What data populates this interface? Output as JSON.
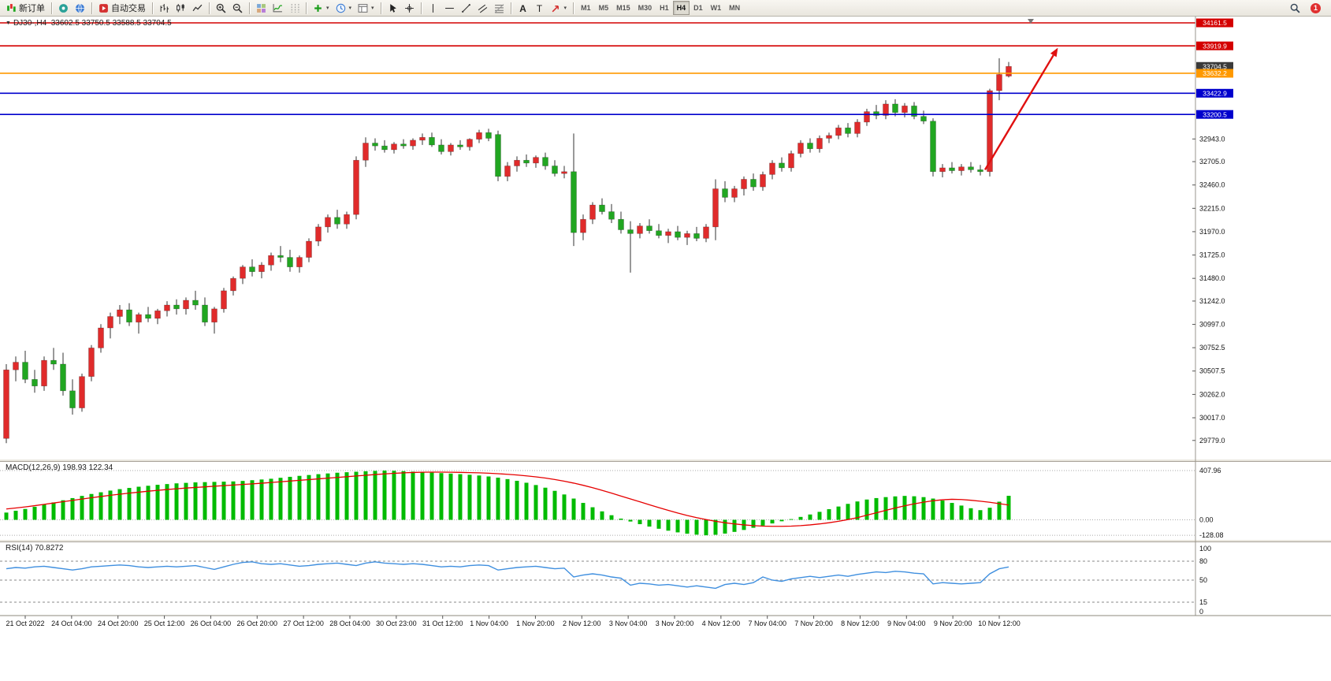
{
  "window": {
    "bg": "#ffffff"
  },
  "toolbar": {
    "groups": [
      {
        "buttons": [
          {
            "name": "new-order",
            "icon": "new-order-icon",
            "label": "新订单"
          }
        ]
      },
      {
        "buttons": [
          {
            "name": "charts-community",
            "icon": "chat-icon"
          },
          {
            "name": "metaquotes",
            "icon": "globe-icon"
          }
        ]
      },
      {
        "buttons": [
          {
            "name": "autotrade",
            "icon": "autotrade-icon",
            "label": "自动交易"
          }
        ]
      },
      {
        "buttons": [
          {
            "name": "chart-bars",
            "icon": "bars-icon"
          },
          {
            "name": "chart-candles",
            "icon": "candles-icon"
          },
          {
            "name": "chart-line",
            "icon": "line-icon"
          }
        ]
      },
      {
        "buttons": [
          {
            "name": "zoom-in",
            "icon": "zoom-in-icon"
          },
          {
            "name": "zoom-out",
            "icon": "zoom-out-icon"
          }
        ]
      },
      {
        "buttons": [
          {
            "name": "tile-windows",
            "icon": "tile-icon"
          },
          {
            "name": "indicators",
            "icon": "indicators-icon"
          },
          {
            "name": "period-separators",
            "icon": "grid-icon"
          }
        ]
      },
      {
        "buttons": [
          {
            "name": "add-indicator",
            "icon": "plus-icon",
            "dropdown": true
          },
          {
            "name": "periods",
            "icon": "clock-icon",
            "dropdown": true
          },
          {
            "name": "templates",
            "icon": "template-icon",
            "dropdown": true
          }
        ]
      },
      {
        "buttons": [
          {
            "name": "cursor",
            "icon": "cursor-icon"
          },
          {
            "name": "crosshair",
            "icon": "crosshair-icon"
          }
        ]
      },
      {
        "buttons": [
          {
            "name": "vertical-line-tool",
            "icon": "vline-icon"
          },
          {
            "name": "horizontal-line-tool",
            "icon": "hline-icon"
          },
          {
            "name": "trendline-tool",
            "icon": "trendline-icon"
          },
          {
            "name": "channel-tool",
            "icon": "channel-icon"
          },
          {
            "name": "fibonacci-tool",
            "icon": "fibo-icon"
          }
        ]
      },
      {
        "buttons": [
          {
            "name": "text-tool",
            "icon": "text-a-icon"
          },
          {
            "name": "label-tool",
            "icon": "text-t-icon"
          },
          {
            "name": "arrows-tool",
            "icon": "arrow-tool-icon",
            "dropdown": true
          }
        ]
      },
      {
        "buttons": [
          {
            "name": "tf-m1",
            "label": "M1",
            "tf": true
          },
          {
            "name": "tf-m5",
            "label": "M5",
            "tf": true
          },
          {
            "name": "tf-m15",
            "label": "M15",
            "tf": true
          },
          {
            "name": "tf-m30",
            "label": "M30",
            "tf": true
          },
          {
            "name": "tf-h1",
            "label": "H1",
            "tf": true
          },
          {
            "name": "tf-h4",
            "label": "H4",
            "tf": true,
            "active": true
          },
          {
            "name": "tf-d1",
            "label": "D1",
            "tf": true
          },
          {
            "name": "tf-w1",
            "label": "W1",
            "tf": true
          },
          {
            "name": "tf-mn",
            "label": "MN",
            "tf": true
          }
        ]
      }
    ],
    "right": [
      {
        "name": "search",
        "icon": "search-icon"
      },
      {
        "name": "notifications",
        "icon": "badge-icon",
        "badge": "1"
      }
    ]
  },
  "chart": {
    "collapse_glyph": "▼",
    "header": "DJ30-,H4  33602.5 33750.5 33588.5 33704.5",
    "macd_header": "MACD(12,26,9) 198.93 122.34",
    "rsi_header": "RSI(14) 70.8272"
  },
  "chart_data": {
    "type": "candlestick+indicators",
    "symbol": "DJ30-",
    "period": "H4",
    "ohlc_display": {
      "open": "33602.5",
      "high": "33750.5",
      "low": "33588.5",
      "close": "33704.5"
    },
    "colors": {
      "up": "#e02b2b",
      "down": "#21a621",
      "wick": "#333333",
      "macd_hist": "#00bb00",
      "macd_signal": "#e60000",
      "rsi_line": "#3f8fdf",
      "hline_red": "#d40000",
      "hline_orange": "#ff9900",
      "hline_blue": "#0000cd",
      "arrow": "#e01010",
      "current_tag": "#3a3a3a"
    },
    "candles": [
      [
        29800,
        30580,
        29750,
        30520
      ],
      [
        30520,
        30660,
        30400,
        30600
      ],
      [
        30600,
        30720,
        30380,
        30420
      ],
      [
        30420,
        30520,
        30280,
        30350
      ],
      [
        30350,
        30660,
        30300,
        30620
      ],
      [
        30620,
        30750,
        30520,
        30580
      ],
      [
        30580,
        30700,
        30250,
        30300
      ],
      [
        30300,
        30420,
        30050,
        30120
      ],
      [
        30120,
        30480,
        30080,
        30450
      ],
      [
        30450,
        30780,
        30400,
        30750
      ],
      [
        30750,
        31000,
        30700,
        30960
      ],
      [
        30960,
        31120,
        30850,
        31080
      ],
      [
        31080,
        31200,
        31000,
        31150
      ],
      [
        31150,
        31220,
        30980,
        31020
      ],
      [
        31020,
        31120,
        30900,
        31100
      ],
      [
        31100,
        31180,
        31020,
        31060
      ],
      [
        31060,
        31160,
        31000,
        31140
      ],
      [
        31140,
        31240,
        31080,
        31200
      ],
      [
        31200,
        31260,
        31100,
        31160
      ],
      [
        31160,
        31280,
        31100,
        31250
      ],
      [
        31250,
        31350,
        31150,
        31200
      ],
      [
        31200,
        31280,
        30980,
        31020
      ],
      [
        31020,
        31180,
        30900,
        31160
      ],
      [
        31160,
        31380,
        31120,
        31350
      ],
      [
        31350,
        31500,
        31300,
        31480
      ],
      [
        31480,
        31620,
        31420,
        31600
      ],
      [
        31600,
        31680,
        31500,
        31550
      ],
      [
        31550,
        31650,
        31480,
        31620
      ],
      [
        31620,
        31750,
        31560,
        31720
      ],
      [
        31720,
        31820,
        31650,
        31700
      ],
      [
        31700,
        31780,
        31550,
        31600
      ],
      [
        31600,
        31720,
        31540,
        31700
      ],
      [
        31700,
        31900,
        31650,
        31870
      ],
      [
        31870,
        32050,
        31820,
        32020
      ],
      [
        32020,
        32150,
        31960,
        32120
      ],
      [
        32120,
        32200,
        32000,
        32050
      ],
      [
        32050,
        32180,
        32000,
        32150
      ],
      [
        32150,
        32760,
        32100,
        32720
      ],
      [
        32720,
        32960,
        32650,
        32900
      ],
      [
        32900,
        32950,
        32820,
        32870
      ],
      [
        32870,
        32930,
        32800,
        32830
      ],
      [
        32830,
        32910,
        32790,
        32890
      ],
      [
        32890,
        32940,
        32840,
        32870
      ],
      [
        32870,
        32950,
        32830,
        32930
      ],
      [
        32930,
        33000,
        32880,
        32960
      ],
      [
        32960,
        33010,
        32860,
        32880
      ],
      [
        32880,
        32940,
        32780,
        32810
      ],
      [
        32810,
        32900,
        32770,
        32880
      ],
      [
        32880,
        32930,
        32830,
        32860
      ],
      [
        32860,
        32950,
        32820,
        32940
      ],
      [
        32940,
        33040,
        32900,
        33010
      ],
      [
        33010,
        33050,
        32920,
        32950
      ],
      [
        32990,
        33030,
        32500,
        32550
      ],
      [
        32550,
        32700,
        32500,
        32660
      ],
      [
        32660,
        32760,
        32600,
        32720
      ],
      [
        32720,
        32780,
        32650,
        32690
      ],
      [
        32690,
        32770,
        32640,
        32750
      ],
      [
        32750,
        32800,
        32620,
        32660
      ],
      [
        32660,
        32720,
        32550,
        32580
      ],
      [
        32580,
        32660,
        32530,
        32600
      ],
      [
        32600,
        33000,
        31820,
        31960
      ],
      [
        31960,
        32150,
        31880,
        32100
      ],
      [
        32100,
        32280,
        32050,
        32250
      ],
      [
        32250,
        32320,
        32150,
        32180
      ],
      [
        32180,
        32260,
        32060,
        32100
      ],
      [
        32100,
        32180,
        31950,
        31990
      ],
      [
        31990,
        32080,
        31540,
        31950
      ],
      [
        31950,
        32060,
        31900,
        32030
      ],
      [
        32030,
        32100,
        31950,
        31980
      ],
      [
        31980,
        32050,
        31900,
        31930
      ],
      [
        31930,
        32000,
        31850,
        31970
      ],
      [
        31970,
        32030,
        31880,
        31910
      ],
      [
        31910,
        31980,
        31830,
        31950
      ],
      [
        31950,
        32020,
        31870,
        31900
      ],
      [
        31900,
        32050,
        31860,
        32020
      ],
      [
        32020,
        32520,
        31880,
        32420
      ],
      [
        32420,
        32500,
        32280,
        32330
      ],
      [
        32330,
        32450,
        32280,
        32420
      ],
      [
        32420,
        32550,
        32350,
        32520
      ],
      [
        32520,
        32580,
        32400,
        32440
      ],
      [
        32440,
        32600,
        32400,
        32570
      ],
      [
        32570,
        32720,
        32520,
        32690
      ],
      [
        32690,
        32750,
        32600,
        32640
      ],
      [
        32640,
        32820,
        32600,
        32790
      ],
      [
        32790,
        32930,
        32750,
        32900
      ],
      [
        32900,
        32950,
        32800,
        32840
      ],
      [
        32840,
        32980,
        32800,
        32950
      ],
      [
        32950,
        33010,
        32900,
        32980
      ],
      [
        32980,
        33090,
        32940,
        33060
      ],
      [
        33060,
        33110,
        32960,
        33000
      ],
      [
        33000,
        33150,
        32960,
        33120
      ],
      [
        33120,
        33260,
        33080,
        33230
      ],
      [
        33230,
        33300,
        33150,
        33190
      ],
      [
        33190,
        33350,
        33150,
        33310
      ],
      [
        33310,
        33360,
        33180,
        33220
      ],
      [
        33220,
        33320,
        33170,
        33290
      ],
      [
        33290,
        33330,
        33150,
        33180
      ],
      [
        33180,
        33240,
        33100,
        33130
      ],
      [
        33130,
        33160,
        32550,
        32600
      ],
      [
        32600,
        32680,
        32540,
        32640
      ],
      [
        32640,
        32700,
        32580,
        32610
      ],
      [
        32610,
        32680,
        32560,
        32650
      ],
      [
        32650,
        32700,
        32590,
        32620
      ],
      [
        32620,
        32670,
        32560,
        32600
      ],
      [
        32600,
        33470,
        32550,
        33450
      ],
      [
        33450,
        33790,
        33350,
        33620
      ],
      [
        33602.5,
        33750.5,
        33588.5,
        33704.5
      ]
    ],
    "hlines": [
      {
        "price": 34161.5,
        "color": "#d40000",
        "width": 1.4
      },
      {
        "price": 33919.9,
        "color": "#d40000",
        "width": 1.6
      },
      {
        "price": 33632.2,
        "color": "#ff9900",
        "width": 1.6
      },
      {
        "price": 33422.9,
        "color": "#0000cd",
        "width": 1.6
      },
      {
        "price": 33200.5,
        "color": "#0000cd",
        "width": 1.6
      }
    ],
    "price_axis": {
      "tag_labels": [
        {
          "text": "34161.5",
          "bg": "#d40000"
        },
        {
          "text": "33919.9",
          "bg": "#d40000"
        },
        {
          "text": "33704.5",
          "bg": "#3a3a3a",
          "kind": "current"
        },
        {
          "text": "33632.2",
          "bg": "#ff9900"
        },
        {
          "text": "33422.9",
          "bg": "#0000cd"
        },
        {
          "text": "33200.5",
          "bg": "#0000cd"
        }
      ],
      "plain_ticks": [
        "32943.0",
        "32705.0",
        "32460.0",
        "32215.0",
        "31970.0",
        "31725.0",
        "31480.0",
        "31242.0",
        "30997.0",
        "30752.5",
        "30507.5",
        "30262.0",
        "30017.0",
        "29779.0"
      ]
    },
    "trend_arrow": {
      "x1_bar": 103.5,
      "price1": 32620,
      "x2_bar": 111.2,
      "price2": 33900,
      "color": "#e01010"
    },
    "macd": {
      "label": "MACD(12,26,9)",
      "value_main": 198.93,
      "value_signal": 122.34,
      "scale_labels": [
        "407.96",
        "0.00",
        "-128.08"
      ],
      "hist": [
        60,
        75,
        90,
        108,
        126,
        144,
        162,
        180,
        198,
        214,
        228,
        242,
        254,
        264,
        274,
        282,
        290,
        296,
        302,
        306,
        310,
        312,
        314,
        316,
        318,
        322,
        328,
        334,
        340,
        348,
        356,
        364,
        371,
        378,
        384,
        390,
        394,
        398,
        402,
        405,
        407.96,
        406,
        403,
        399,
        395,
        391,
        387,
        383,
        378,
        373,
        367,
        359,
        349,
        337,
        323,
        307,
        288,
        266,
        240,
        210,
        176,
        140,
        104,
        70,
        38,
        10,
        -14,
        -36,
        -56,
        -74,
        -90,
        -104,
        -115,
        -123,
        -128.08,
        -124,
        -114,
        -100,
        -84,
        -66,
        -48,
        -30,
        -12,
        6,
        24,
        44,
        66,
        88,
        110,
        132,
        152,
        168,
        180,
        188,
        194,
        198,
        195,
        188,
        176,
        160,
        140,
        118,
        96,
        80,
        100,
        150,
        198.93
      ],
      "signal": [
        90,
        98,
        107,
        117,
        128,
        139,
        150,
        161,
        172,
        183,
        193,
        203,
        212,
        221,
        229,
        237,
        244,
        251,
        257,
        263,
        268,
        273,
        278,
        283,
        288,
        293,
        298,
        303,
        309,
        315,
        321,
        327,
        333,
        339,
        345,
        351,
        357,
        363,
        369,
        375,
        380,
        385,
        389,
        392,
        394,
        395,
        395,
        394,
        393,
        391,
        389,
        386,
        382,
        377,
        371,
        364,
        356,
        346,
        334,
        320,
        304,
        286,
        266,
        244,
        221,
        197,
        173,
        149,
        125,
        101,
        78,
        56,
        36,
        18,
        2,
        -12,
        -24,
        -34,
        -42,
        -48,
        -52,
        -54,
        -54,
        -52,
        -48,
        -42,
        -34,
        -24,
        -12,
        2,
        18,
        38,
        58,
        78,
        98,
        116,
        132,
        146,
        158,
        166,
        170,
        168,
        162,
        154,
        145,
        134,
        122.34
      ]
    },
    "rsi": {
      "label": "RSI(14)",
      "value": 70.8272,
      "levels": [
        100,
        80,
        50,
        15,
        0
      ],
      "dashed_levels": [
        80,
        50,
        15
      ],
      "values": [
        68,
        70,
        69,
        71,
        72,
        70,
        68,
        66,
        68,
        71,
        72,
        73,
        74,
        73,
        71,
        70,
        71,
        72,
        71,
        72,
        73,
        70,
        67,
        71,
        75,
        78,
        79,
        76,
        75,
        76,
        74,
        72,
        73,
        75,
        76,
        77,
        75,
        73,
        77,
        79,
        77,
        76,
        75,
        76,
        75,
        73,
        71,
        72,
        71,
        73,
        74,
        73,
        66,
        68,
        70,
        71,
        72,
        70,
        68,
        69,
        55,
        58,
        60,
        58,
        55,
        53,
        42,
        45,
        44,
        42,
        43,
        41,
        39,
        41,
        39,
        37,
        43,
        45,
        43,
        46,
        55,
        50,
        48,
        52,
        54,
        56,
        54,
        56,
        58,
        56,
        59,
        61,
        63,
        62,
        64,
        63,
        61,
        60,
        44,
        46,
        45,
        44,
        45,
        46,
        60,
        68,
        70.8272
      ]
    },
    "time_axis": {
      "labels": [
        "21 Oct 2022",
        "24 Oct 04:00",
        "24 Oct 20:00",
        "25 Oct 12:00",
        "26 Oct 04:00",
        "26 Oct 20:00",
        "27 Oct 12:00",
        "28 Oct 04:00",
        "30 Oct 23:00",
        "31 Oct 12:00",
        "1 Nov 04:00",
        "1 Nov 20:00",
        "2 Nov 12:00",
        "3 Nov 04:00",
        "3 Nov 20:00",
        "4 Nov 12:00",
        "7 Nov 04:00",
        "7 Nov 20:00",
        "8 Nov 12:00",
        "9 Nov 04:00",
        "9 Nov 20:00",
        "10 Nov 12:00"
      ]
    }
  }
}
